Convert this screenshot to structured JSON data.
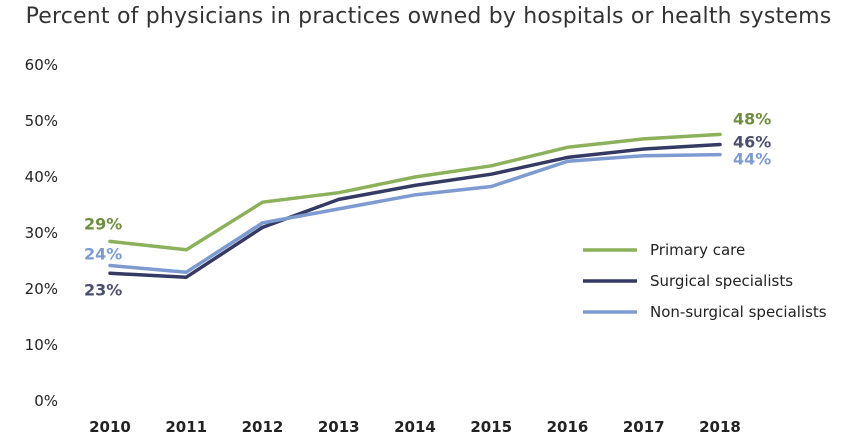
{
  "chart_data": {
    "type": "line",
    "title": "Percent of physicians in practices owned by hospitals or health systems",
    "xlabel": "",
    "ylabel": "",
    "categories": [
      "2010",
      "2011",
      "2012",
      "2013",
      "2014",
      "2015",
      "2016",
      "2017",
      "2018"
    ],
    "ylim": [
      0,
      60
    ],
    "yticks": [
      "0%",
      "10%",
      "20%",
      "30%",
      "40%",
      "50%",
      "60%"
    ],
    "grid": false,
    "legend_position": "right",
    "series": [
      {
        "name": "Primary care",
        "color": "#8BB15A",
        "label_color": "#6E8E3F",
        "values": [
          28.5,
          27,
          35.5,
          37.2,
          40,
          42,
          45.3,
          46.8,
          47.6
        ],
        "start_label": "29%",
        "end_label": "48%"
      },
      {
        "name": "Surgical specialists",
        "color": "#343A63",
        "label_color": "#4A4F6E",
        "values": [
          22.8,
          22.1,
          31,
          36,
          38.5,
          40.5,
          43.5,
          45,
          45.8
        ],
        "start_label": "23%",
        "end_label": "46%"
      },
      {
        "name": "Non-surgical specialists",
        "color": "#7D9BD1",
        "label_color": "#7D9BD1",
        "values": [
          24.2,
          23,
          31.8,
          34.3,
          36.8,
          38.3,
          42.8,
          43.8,
          44
        ],
        "start_label": "24%",
        "end_label": "44%"
      }
    ]
  }
}
